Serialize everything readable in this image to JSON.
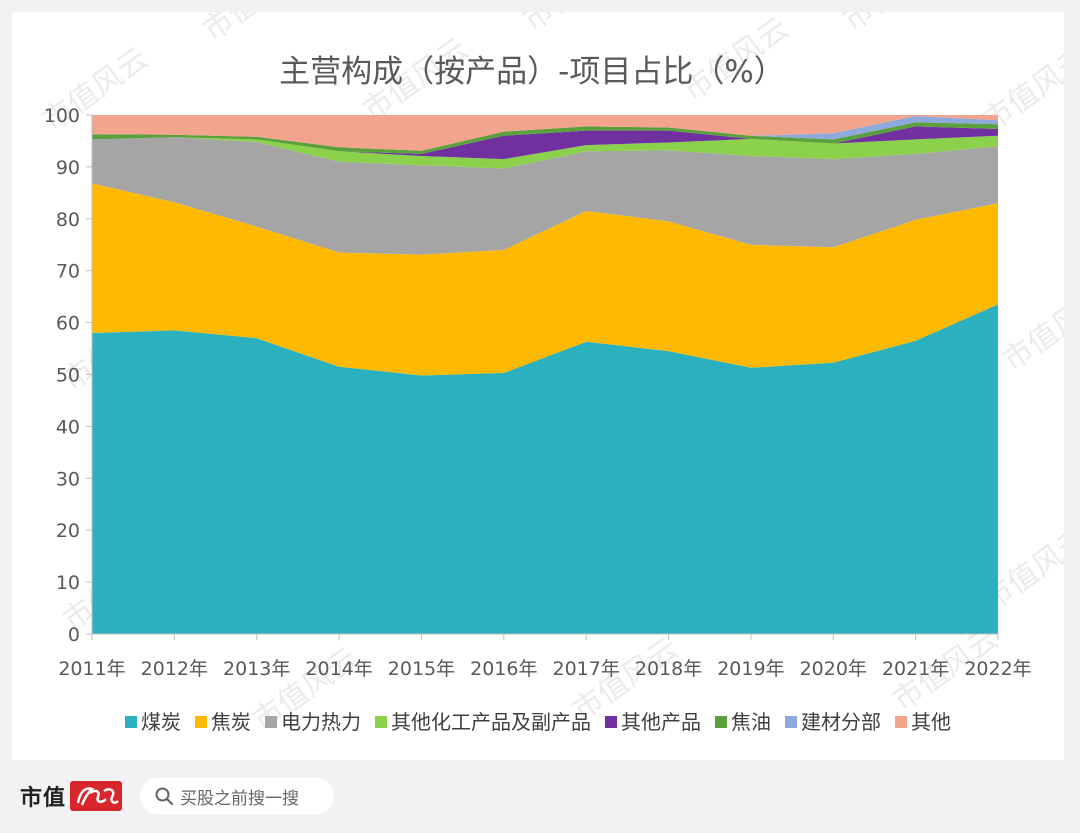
{
  "chart_data": {
    "type": "area",
    "stacked": true,
    "title": "主营构成（按产品）-项目占比（%）",
    "xlabel": "",
    "ylabel": "",
    "ylim": [
      0,
      100
    ],
    "yticks": [
      0,
      10,
      20,
      30,
      40,
      50,
      60,
      70,
      80,
      90,
      100
    ],
    "grid": false,
    "legend_position": "bottom",
    "categories": [
      "2011年",
      "2012年",
      "2013年",
      "2014年",
      "2015年",
      "2016年",
      "2017年",
      "2018年",
      "2019年",
      "2020年",
      "2021年",
      "2022年"
    ],
    "series": [
      {
        "name": "煤炭",
        "color": "#2ab0be",
        "values": [
          58,
          58.5,
          57,
          51.5,
          49.8,
          50.3,
          56.3,
          54.5,
          51.3,
          52.3,
          56.5,
          63.5
        ]
      },
      {
        "name": "焦炭",
        "color": "#ffb900",
        "values": [
          28.8,
          24.7,
          21.5,
          22,
          23.3,
          23.7,
          25.2,
          25,
          23.7,
          22.2,
          23.3,
          19.5
        ]
      },
      {
        "name": "电力热力",
        "color": "#a5a5a5",
        "values": [
          8.5,
          12.5,
          16.3,
          17.5,
          17.2,
          15.7,
          11.5,
          13.7,
          17.1,
          17,
          12.7,
          11
        ]
      },
      {
        "name": "其他化工产品及副产品",
        "color": "#8bd14b",
        "values": [
          0,
          0,
          0.5,
          2,
          1.8,
          1.8,
          1.2,
          1.5,
          3.3,
          3,
          2.8,
          2
        ]
      },
      {
        "name": "其他产品",
        "color": "#7030a0",
        "values": [
          0,
          0,
          0,
          0,
          0.4,
          4.5,
          2.8,
          2.3,
          0,
          0,
          2.5,
          1.3
        ]
      },
      {
        "name": "焦油",
        "color": "#5aa03c",
        "values": [
          1,
          0.5,
          0.5,
          0.8,
          0.6,
          0.8,
          0.8,
          0.6,
          0.6,
          0.8,
          0.8,
          0.9
        ]
      },
      {
        "name": "建材分部",
        "color": "#8ea9db",
        "values": [
          0,
          0,
          0,
          0,
          0,
          0,
          0,
          0,
          0,
          1.2,
          1.2,
          0.8
        ]
      },
      {
        "name": "其他",
        "color": "#f2a58c",
        "values": [
          3.7,
          3.8,
          4.2,
          6.2,
          6.9,
          3.2,
          2.2,
          2.4,
          4,
          3.5,
          0.2,
          1
        ]
      }
    ]
  },
  "watermark": "市值风云",
  "footer": {
    "brand_text": "市值",
    "brand_seal_icon": "fengyun-seal-icon",
    "search_icon": "magnifier-icon",
    "search_placeholder": "买股之前搜一搜"
  }
}
